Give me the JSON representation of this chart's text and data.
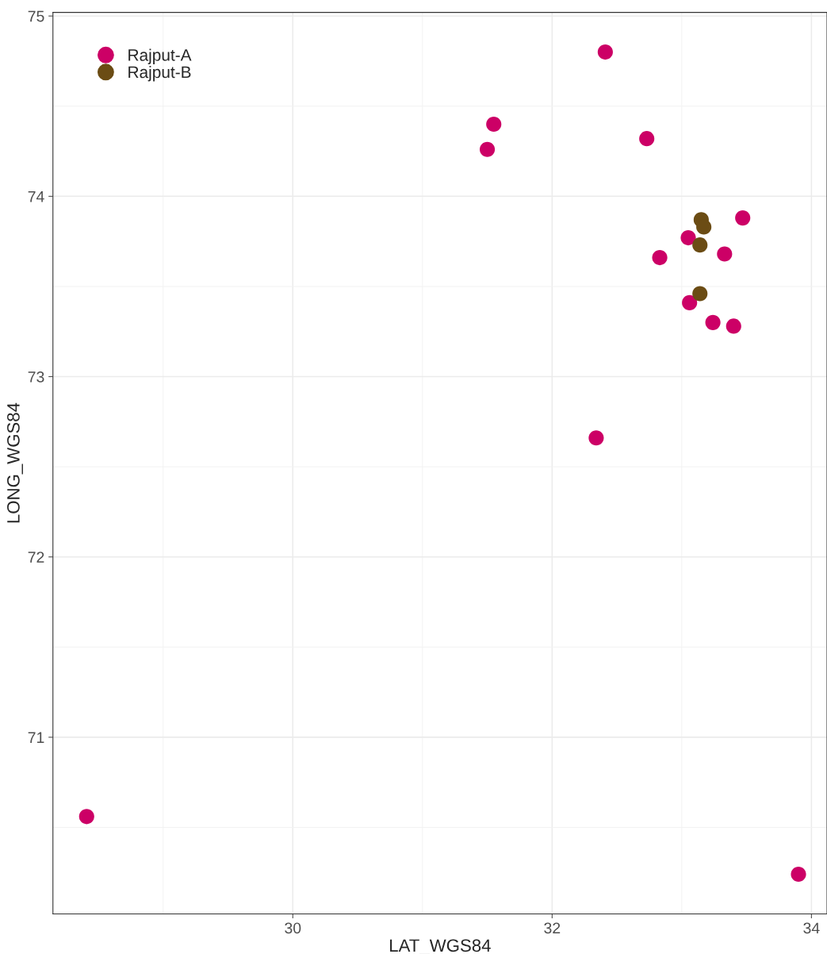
{
  "chart_data": {
    "type": "scatter",
    "xlabel": "LAT_WGS84",
    "ylabel": "LONG_WGS84",
    "xlim": [
      28.15,
      34.12
    ],
    "ylim": [
      70.02,
      75.02
    ],
    "xticks": [
      30,
      32,
      34
    ],
    "yticks": [
      71,
      72,
      73,
      74,
      75
    ],
    "grid": true,
    "legend": "top left",
    "marker": "circle",
    "series": [
      {
        "name": "Rajput-A",
        "color": "#cc0066",
        "x": [
          28.41,
          33.9,
          32.34,
          32.41,
          31.55,
          31.5,
          32.73,
          32.83,
          33.47,
          33.33,
          33.05,
          33.06,
          33.24,
          33.4
        ],
        "values": [
          70.56,
          70.24,
          72.66,
          74.8,
          74.4,
          74.26,
          74.32,
          73.66,
          73.88,
          73.68,
          73.77,
          73.41,
          73.3,
          73.28
        ]
      },
      {
        "name": "Rajput-B",
        "color": "#6b4c14",
        "x": [
          33.15,
          33.17,
          33.14,
          33.14
        ],
        "values": [
          73.87,
          73.83,
          73.73,
          73.46
        ]
      }
    ]
  }
}
